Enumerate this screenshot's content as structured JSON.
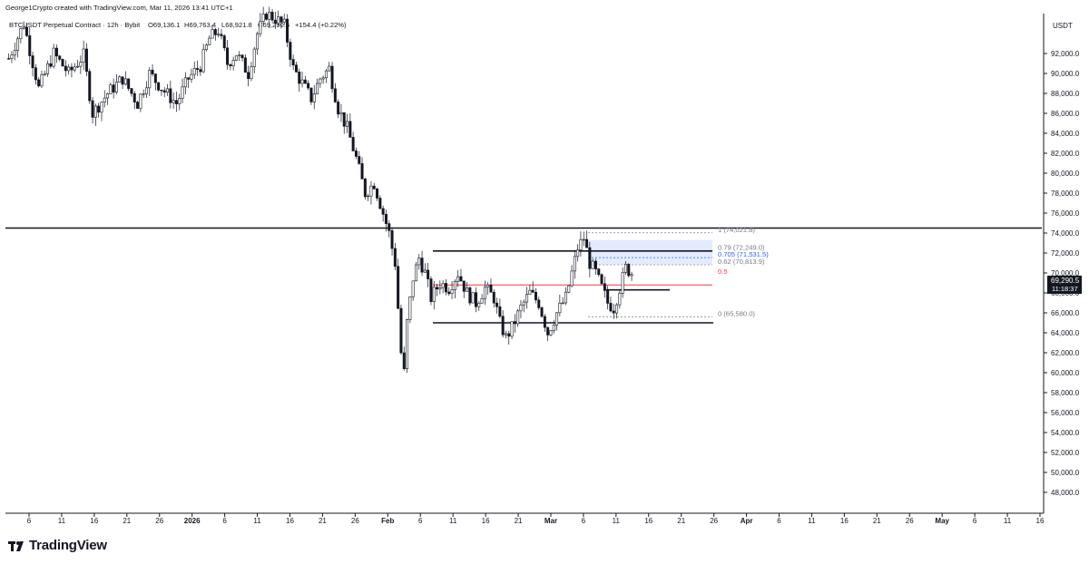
{
  "header": {
    "created_by": "George1Crypto created with TradingView.com, Mar 11, 2026 13:41 UTC+1",
    "symbol_line": "BTCUSDT Perpetual Contract · 12h · Bybit",
    "open": "O69,136.1",
    "high": "H69,763.4",
    "low": "L68,921.8",
    "close": "C69,290.5",
    "change": "+154.4 (+0.22%)"
  },
  "price_axis": {
    "currency": "USDT",
    "current_price": "69,290.5",
    "countdown": "11:18:37"
  },
  "brand": {
    "name": "TradingView"
  },
  "colors": {
    "up": "#131722",
    "down": "#131722",
    "fib_zone": "#2962ff",
    "mid_line": "#f23645",
    "label_blue": "#2962ff"
  },
  "chart_data": {
    "type": "candlestick",
    "symbol": "BTCUSDT",
    "interval": "12h",
    "exchange": "Bybit",
    "ylim": [
      46000,
      96500
    ],
    "y_ticks": [
      48000,
      50000,
      52000,
      54000,
      56000,
      58000,
      60000,
      62000,
      64000,
      66000,
      68000,
      70000,
      72000,
      74000,
      76000,
      78000,
      80000,
      82000,
      84000,
      86000,
      88000,
      90000,
      92000
    ],
    "y_tick_labels": [
      "48,000.0",
      "50,000.0",
      "52,000.0",
      "54,000.0",
      "56,000.0",
      "58,000.0",
      "60,000.0",
      "62,000.0",
      "64,000.0",
      "66,000.0",
      "68,000.0",
      "70,000.0",
      "72,000.0",
      "74,000.0",
      "76,000.0",
      "78,000.0",
      "80,000.0",
      "82,000.0",
      "84,000.0",
      "86,000.0",
      "88,000.0",
      "90,000.0",
      "92,000.0"
    ],
    "x_tick_labels": [
      "6",
      "11",
      "16",
      "21",
      "26",
      "2026",
      "6",
      "11",
      "16",
      "21",
      "26",
      "Feb",
      "6",
      "11",
      "16",
      "21",
      "Mar",
      "6",
      "11",
      "16",
      "21",
      "26",
      "Apr",
      "6",
      "11",
      "16",
      "21",
      "26",
      "May",
      "6",
      "11",
      "16"
    ],
    "price_path": [
      [
        0,
        91500
      ],
      [
        5,
        95000
      ],
      [
        10,
        88500
      ],
      [
        15,
        92000
      ],
      [
        20,
        90000
      ],
      [
        25,
        91800
      ],
      [
        28,
        86000
      ],
      [
        33,
        88000
      ],
      [
        38,
        89500
      ],
      [
        43,
        87000
      ],
      [
        47,
        90000
      ],
      [
        52,
        88200
      ],
      [
        56,
        87000
      ],
      [
        60,
        89500
      ],
      [
        64,
        90800
      ],
      [
        67,
        93500
      ],
      [
        70,
        94300
      ],
      [
        73,
        91000
      ],
      [
        76,
        92000
      ],
      [
        80,
        90000
      ],
      [
        83,
        94000
      ],
      [
        86,
        96000
      ],
      [
        89,
        95500
      ],
      [
        92,
        94800
      ],
      [
        95,
        90500
      ],
      [
        98,
        89000
      ],
      [
        101,
        87500
      ],
      [
        104,
        89500
      ],
      [
        107,
        90500
      ],
      [
        110,
        86500
      ],
      [
        113,
        84500
      ],
      [
        116,
        81500
      ],
      [
        119,
        78000
      ],
      [
        122,
        79000
      ],
      [
        125,
        76000
      ],
      [
        127,
        74000
      ],
      [
        129,
        71000
      ],
      [
        131,
        62000
      ],
      [
        132,
        60000
      ],
      [
        133,
        65000
      ],
      [
        135,
        69500
      ],
      [
        137,
        71500
      ],
      [
        139,
        70000
      ],
      [
        141,
        67500
      ],
      [
        144,
        69000
      ],
      [
        147,
        68500
      ],
      [
        150,
        70000
      ],
      [
        153,
        68000
      ],
      [
        156,
        67000
      ],
      [
        159,
        68500
      ],
      [
        162,
        67500
      ],
      [
        164,
        65000
      ],
      [
        166,
        63500
      ],
      [
        168,
        64500
      ],
      [
        171,
        66500
      ],
      [
        174,
        68000
      ],
      [
        177,
        67000
      ],
      [
        180,
        64000
      ],
      [
        183,
        66000
      ],
      [
        186,
        67500
      ],
      [
        188,
        70000
      ],
      [
        190,
        72500
      ],
      [
        192,
        73500
      ],
      [
        194,
        71000
      ],
      [
        196,
        70000
      ],
      [
        198,
        68500
      ],
      [
        200,
        67000
      ],
      [
        202,
        66500
      ],
      [
        204,
        68500
      ],
      [
        206,
        70500
      ],
      [
        208,
        70000
      ],
      [
        209,
        69290.5
      ]
    ],
    "horizontal_lines": [
      {
        "price": 74500,
        "color": "#131722"
      },
      {
        "price": 72200,
        "color": "#131722"
      },
      {
        "price": 68800,
        "color": "#f23645"
      },
      {
        "price": 68300,
        "color": "#131722"
      },
      {
        "price": 65000,
        "color": "#131722"
      }
    ],
    "fib_retracement": [
      {
        "level": "1",
        "price_label": "(74,021.8)",
        "price": 74021.8
      },
      {
        "level": "0.79",
        "price_label": "(72,249.0)",
        "price": 72249.0
      },
      {
        "level": "0.705",
        "price_label": "(71,531.5)",
        "price": 71531.5
      },
      {
        "level": "0.62",
        "price_label": "(70,813.9)",
        "price": 70813.9
      },
      {
        "level": "0.5",
        "price_label": "",
        "price": 69800.9
      },
      {
        "level": "0",
        "price_label": "(65,580.0)",
        "price": 65580.0
      }
    ]
  }
}
